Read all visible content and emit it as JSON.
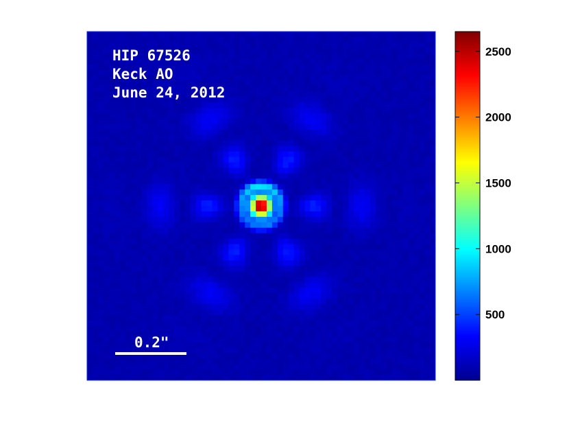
{
  "chart_data": {
    "type": "heatmap",
    "title": "",
    "annotations": {
      "lines": [
        "HIP 67526",
        "Keck AO",
        "June 24, 2012"
      ],
      "scale_bar_label": "0.2\""
    },
    "colorbar": {
      "colormap": "jet",
      "range": [
        0,
        2650
      ],
      "ticks": [
        500,
        1000,
        1500,
        2000,
        2500
      ],
      "tick_labels": [
        "500",
        "1000",
        "1500",
        "2000",
        "2500"
      ]
    },
    "image": {
      "description_values": {
        "background_level": 120,
        "peak_level": 2650,
        "first_ring_level": 750,
        "speckle_level": 300
      }
    }
  }
}
